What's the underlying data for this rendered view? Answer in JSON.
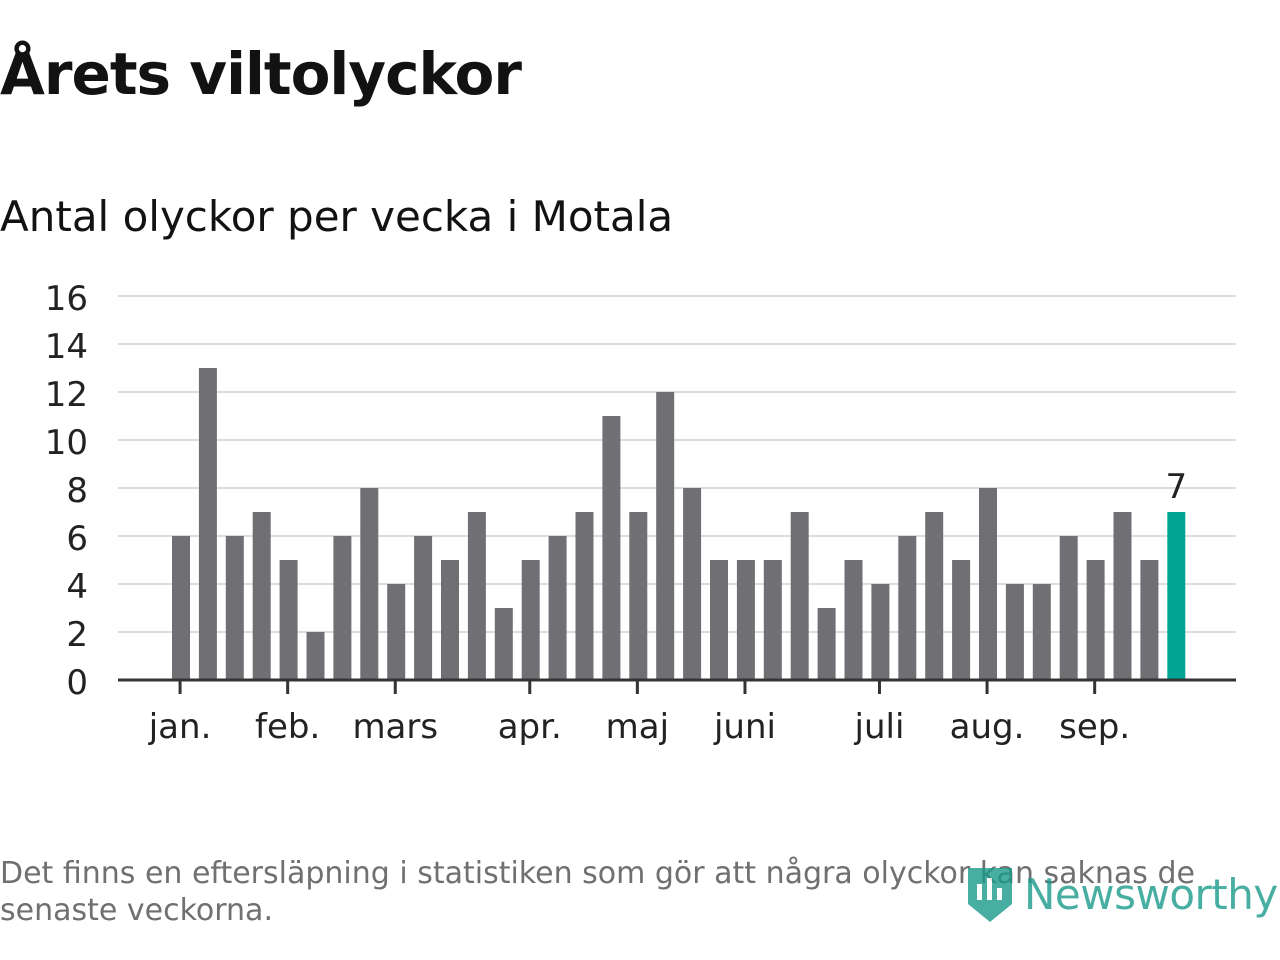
{
  "header": {
    "title": "Årets viltolyckor",
    "subtitle": "Antal olyckor per vecka i Motala"
  },
  "chart_data": {
    "type": "bar",
    "title": "Årets viltolyckor",
    "subtitle": "Antal olyckor per vecka i Motala",
    "xlabel": "",
    "ylabel": "",
    "ylim": [
      0,
      16
    ],
    "yticks": [
      0,
      2,
      4,
      6,
      8,
      10,
      12,
      14,
      16
    ],
    "grid": true,
    "values": [
      6,
      13,
      6,
      7,
      5,
      2,
      6,
      8,
      4,
      6,
      5,
      7,
      3,
      5,
      6,
      7,
      11,
      7,
      12,
      8,
      5,
      5,
      5,
      7,
      3,
      5,
      4,
      6,
      7,
      5,
      8,
      4,
      4,
      6,
      5,
      7,
      5,
      7
    ],
    "month_ticks": [
      {
        "label": "jan.",
        "position": 0.3
      },
      {
        "label": "feb.",
        "position": 4.3
      },
      {
        "label": "mars",
        "position": 8.3
      },
      {
        "label": "apr.",
        "position": 13.3
      },
      {
        "label": "maj",
        "position": 17.3
      },
      {
        "label": "juni",
        "position": 21.3
      },
      {
        "label": "juli",
        "position": 26.3
      },
      {
        "label": "aug.",
        "position": 30.3
      },
      {
        "label": "sep.",
        "position": 34.3
      }
    ],
    "highlight_index": 37,
    "highlight_label": "7",
    "colors": {
      "bar": "#706f74",
      "highlight": "#00a596",
      "grid": "#dcdcdc",
      "axis": "#333333"
    }
  },
  "footer": {
    "note": "Det finns en eftersläpning i statistiken som gör att några olyckor kan saknas de senaste veckorna.",
    "brand": "Newsworthy"
  }
}
